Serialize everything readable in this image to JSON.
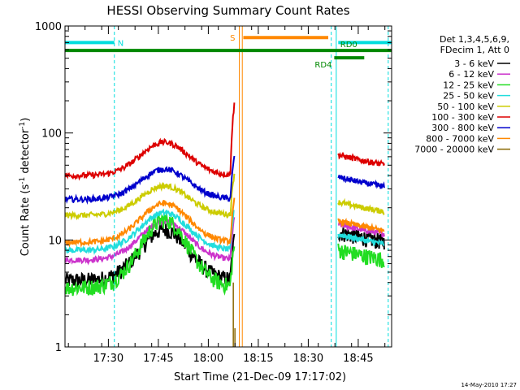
{
  "chart_data": {
    "type": "line",
    "title": "HESSI Observing Summary Count Rates",
    "xlabel": "Start Time (21-Dec-09 17:17:02)",
    "ylabel_main": "Count Rate (s",
    "ylabel_sup1": "-1",
    "ylabel_mid": " detector",
    "ylabel_sup2": "-1",
    "ylabel_end": ")",
    "yscale": "log",
    "xlim_min": [
      17.283,
      18.917
    ],
    "ylim": [
      1,
      1000
    ],
    "y_ticks": [
      {
        "value": 1,
        "label": "1"
      },
      {
        "value": 10,
        "label": "10"
      },
      {
        "value": 100,
        "label": "100"
      },
      {
        "value": 1000,
        "label": "1000"
      }
    ],
    "x_ticks": [
      {
        "value": 17.5,
        "label": "17:30"
      },
      {
        "value": 17.75,
        "label": "17:45"
      },
      {
        "value": 18.0,
        "label": "18:00"
      },
      {
        "value": 18.25,
        "label": "18:15"
      },
      {
        "value": 18.5,
        "label": "18:30"
      },
      {
        "value": 18.75,
        "label": "18:45"
      }
    ],
    "legend_header": [
      "Det 1,3,4,5,6,9,",
      "FDecim 1, Att 0"
    ],
    "legend_position": "right",
    "series": [
      {
        "name": "3 - 6 keV",
        "color": "#000000",
        "baseline": 4.2,
        "peak": 12.5,
        "after": 11
      },
      {
        "name": "6 - 12 keV",
        "color": "#cc33cc",
        "baseline": 6.5,
        "peak": 15,
        "after": 13
      },
      {
        "name": "12 - 25 keV",
        "color": "#22dd22",
        "baseline": 3.6,
        "peak": 15.5,
        "after": 7.5
      },
      {
        "name": "25 - 50 keV",
        "color": "#22dddd",
        "baseline": 8,
        "peak": 18,
        "after": 10.5
      },
      {
        "name": "50 - 100 keV",
        "color": "#cccc00",
        "baseline": 17,
        "peak": 32,
        "after": 21
      },
      {
        "name": "100 - 300 keV",
        "color": "#dd0000",
        "baseline": 40,
        "peak": 82,
        "after": 58
      },
      {
        "name": "300 - 800 keV",
        "color": "#0000cc",
        "baseline": 24,
        "peak": 46,
        "after": 36
      },
      {
        "name": "800 - 7000 keV",
        "color": "#ff8800",
        "baseline": 9.5,
        "peak": 22,
        "after": 14
      },
      {
        "name": "7000 - 20000 keV",
        "color": "#886600",
        "baseline": 1,
        "peak": 1,
        "after": 1
      }
    ],
    "segments": {
      "gap_start": 18.13,
      "gap_end": 18.63,
      "data_start": 17.283,
      "data_end": 18.88
    },
    "flag_bars": [
      {
        "label": "N",
        "color": "#00dddd",
        "y": 700,
        "x_start": 17.283,
        "x_end": 17.53,
        "x2_start": 18.65,
        "x2_end": 18.917
      },
      {
        "label": "S",
        "color": "#ff8800",
        "y": 780,
        "x_start": 18.175,
        "x_end": 18.6
      },
      {
        "label": "RD0",
        "color": "#008800",
        "y": 590,
        "x_start": 17.283,
        "x_end": 18.917
      },
      {
        "label": "RD4",
        "color": "#008800",
        "y": 505,
        "x_start": 18.63,
        "x_end": 18.78
      }
    ],
    "vlines": [
      {
        "x": 17.53,
        "color": "#00dddd",
        "style": "dashed"
      },
      {
        "x": 18.155,
        "color": "#ff8800",
        "style": "solid"
      },
      {
        "x": 18.17,
        "color": "#ff8800",
        "style": "solid"
      },
      {
        "x": 18.615,
        "color": "#00dddd",
        "style": "dashed"
      },
      {
        "x": 18.64,
        "color": "#00dddd",
        "style": "solid"
      },
      {
        "x": 18.9,
        "color": "#00dddd",
        "style": "dashed"
      }
    ],
    "footer_date": "14-May-2010 17:27"
  }
}
